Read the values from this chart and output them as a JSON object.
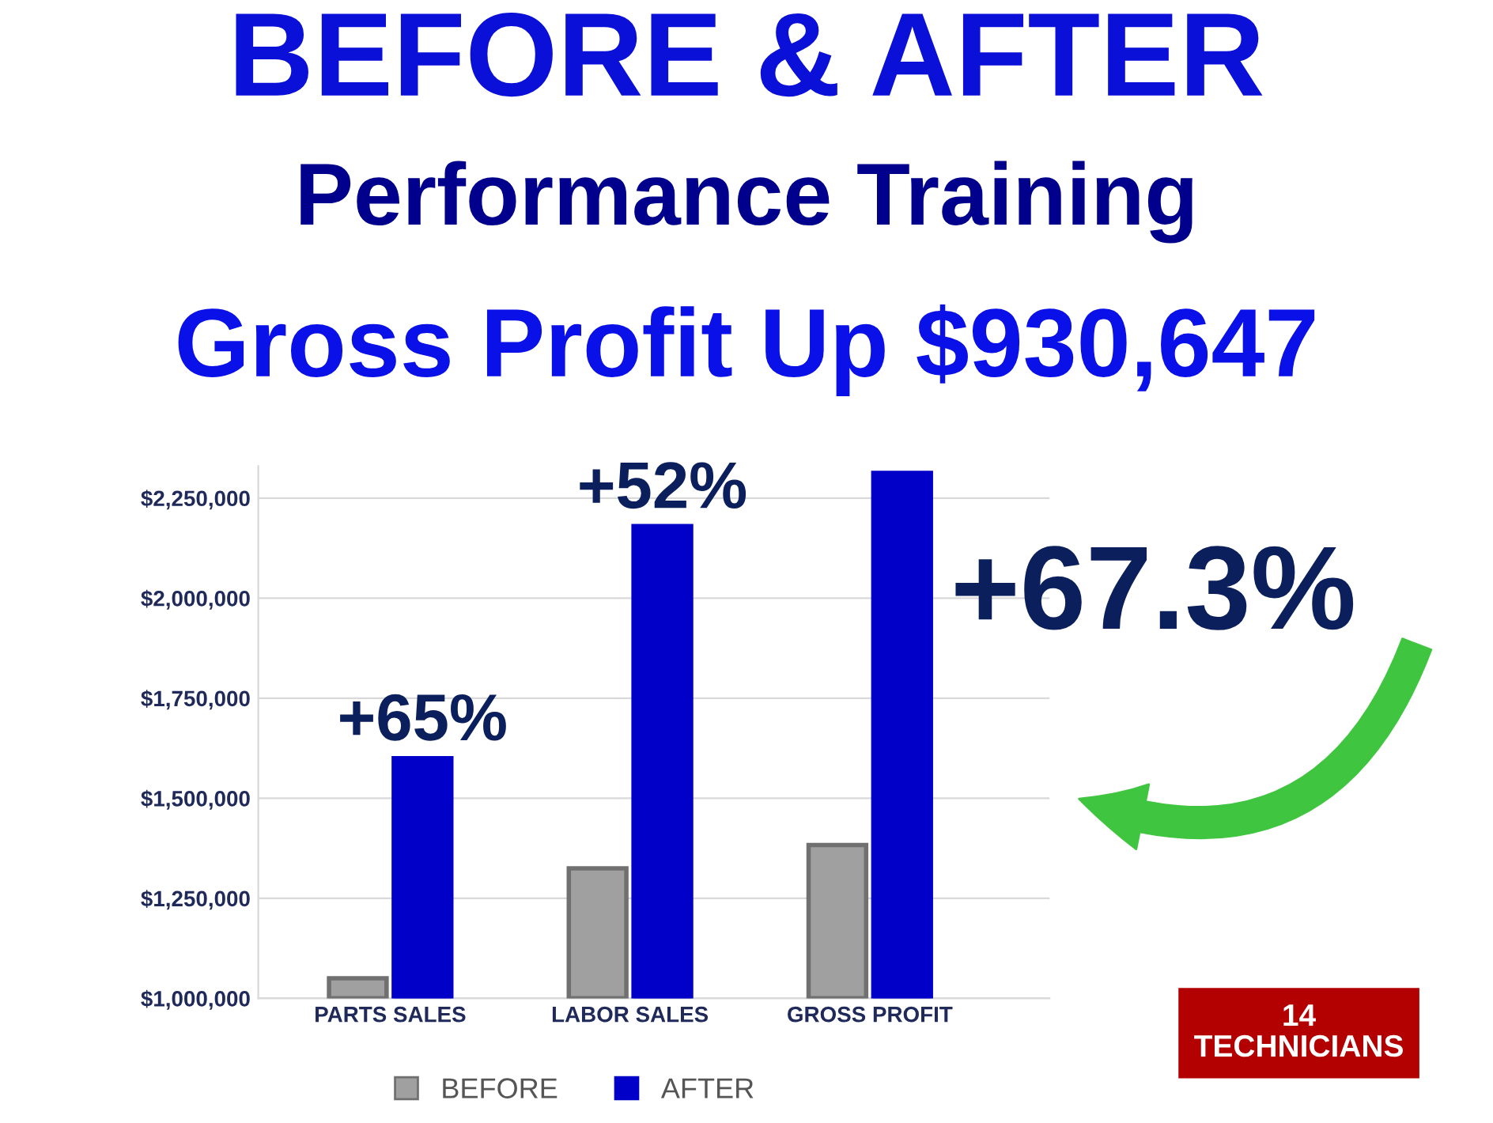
{
  "chart_data": {
    "type": "bar",
    "title": "BEFORE & AFTER",
    "subtitle": "Performance Training",
    "categories": [
      "PARTS SALES",
      "LABOR SALES",
      "GROSS PROFIT"
    ],
    "series": [
      {
        "name": "BEFORE",
        "color": "#a0a0a0",
        "values": [
          1050000,
          1325000,
          1383000
        ]
      },
      {
        "name": "AFTER",
        "color": "#0000c8",
        "values": [
          1600000,
          2180000,
          2313000
        ]
      }
    ],
    "ylim": [
      1000000,
      2330000
    ],
    "yticks": [
      {
        "value": 1000000,
        "label": "$1,000,000"
      },
      {
        "value": 1250000,
        "label": "$1,250,000"
      },
      {
        "value": 1500000,
        "label": "$1,500,000"
      },
      {
        "value": 1750000,
        "label": "$1,750,000"
      },
      {
        "value": 2000000,
        "label": "$2,000,000"
      },
      {
        "value": 2250000,
        "label": "$2,250,000"
      }
    ],
    "grid": "y",
    "legend": "bottom",
    "annotations": [
      "Gross Profit Up $930,647",
      {
        "text": "+65%",
        "x": "PARTS SALES",
        "y": 1600000
      },
      {
        "text": "+52%",
        "x": "LABOR SALES",
        "y": 2180000
      },
      {
        "text": "+67.3%",
        "x": "GROSS PROFIT",
        "y": 2000000
      },
      "14\nTECHNICIANS"
    ]
  }
}
